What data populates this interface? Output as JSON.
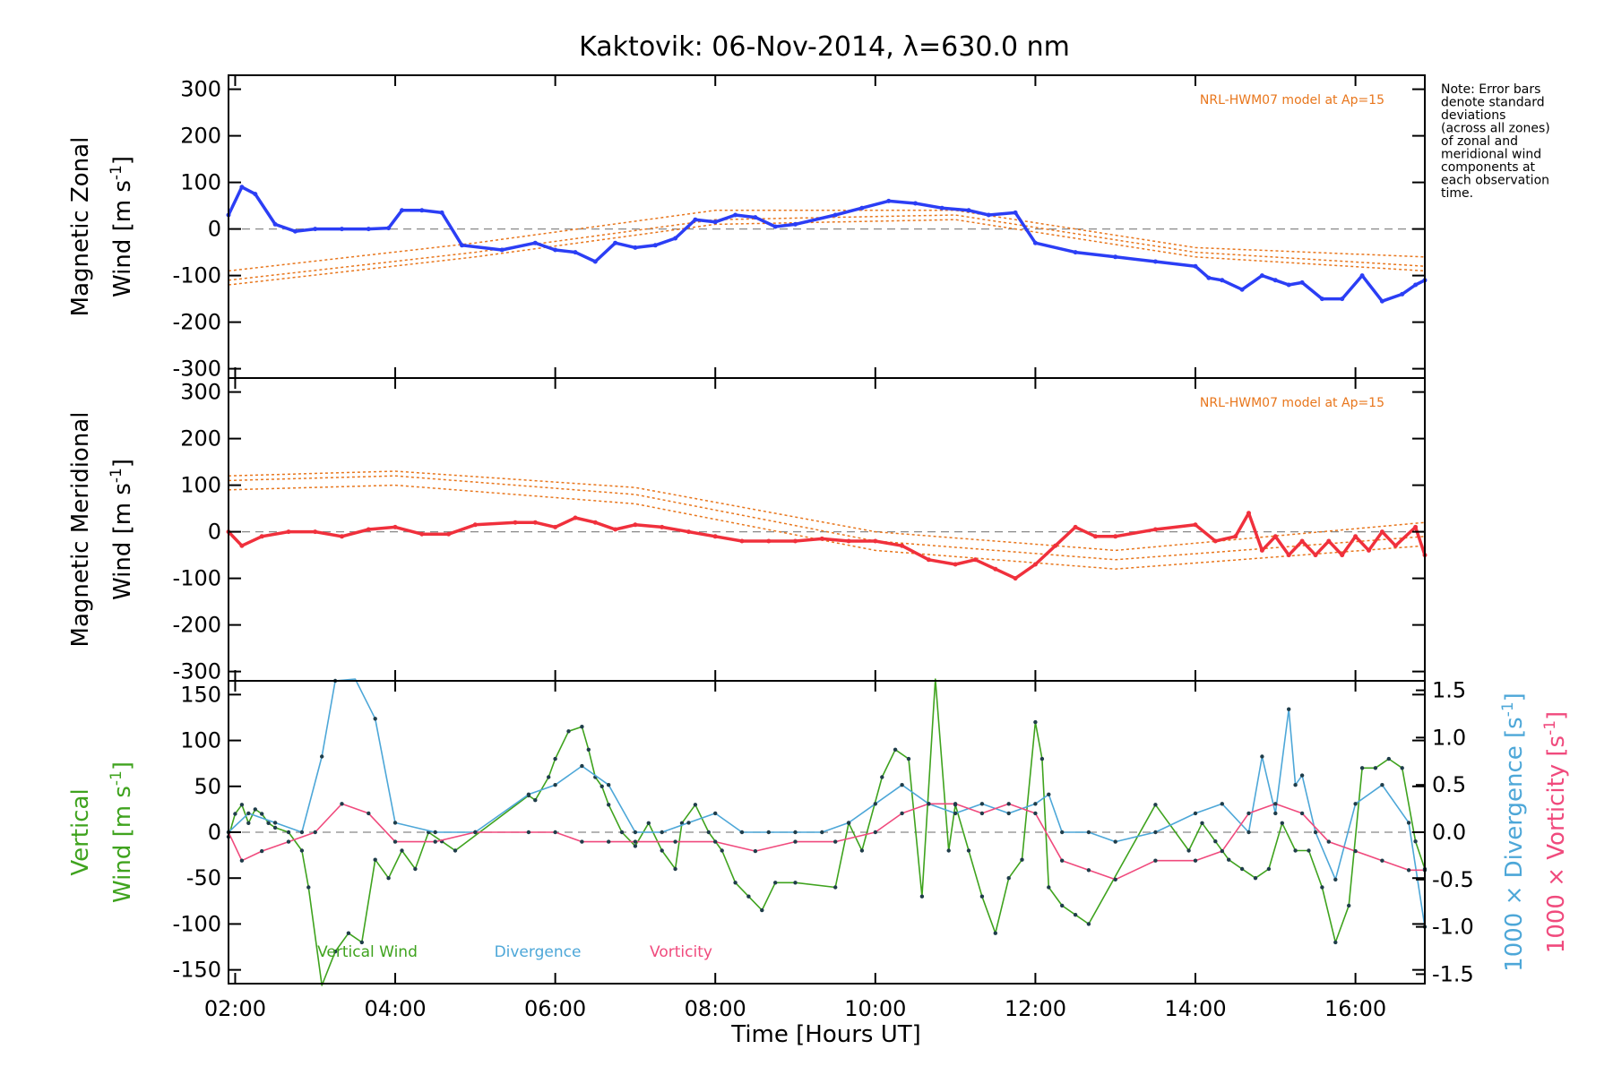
{
  "chart_data": [
    {
      "type": "line",
      "title": "Kaktovik: 06-Nov-2014, λ=630.0 nm",
      "ylabel": "Magnetic Zonal Wind [m s-1]",
      "ylabel_parts": {
        "line1": "Magnetic Zonal",
        "line2": "Wind [m s",
        "sup": "-1",
        "close": "]"
      },
      "xlim": [
        "01:55",
        "16:52"
      ],
      "ylim": [
        -320,
        330
      ],
      "yticks": [
        "300",
        "200",
        "100",
        "0",
        "-100",
        "-200",
        "-300"
      ],
      "zero_line": true,
      "note": [
        "Note: Error bars",
        "denote standard",
        "deviations",
        "(across all zones)",
        "of zonal and",
        "meridional wind",
        "components at",
        "each observation",
        "time."
      ],
      "model_label": "NRL-HWM07 model at Ap=15",
      "series": [
        {
          "color": "#2b3ef5",
          "x": [
            "01:55",
            "02:05",
            "02:15",
            "02:30",
            "02:45",
            "03:00",
            "03:20",
            "03:40",
            "03:55",
            "04:05",
            "04:20",
            "04:35",
            "04:50",
            "05:20",
            "05:45",
            "06:00",
            "06:15",
            "06:30",
            "06:45",
            "07:00",
            "07:15",
            "07:30",
            "07:45",
            "08:00",
            "08:15",
            "08:30",
            "08:45",
            "09:00",
            "09:30",
            "09:50",
            "10:10",
            "10:30",
            "10:50",
            "11:10",
            "11:25",
            "11:45",
            "12:00",
            "12:30",
            "13:00",
            "13:30",
            "14:00",
            "14:10",
            "14:20",
            "14:35",
            "14:50",
            "15:00",
            "15:10",
            "15:20",
            "15:35",
            "15:50",
            "16:05",
            "16:20",
            "16:35",
            "16:45",
            "16:52"
          ],
          "values": [
            30,
            90,
            75,
            10,
            -5,
            0,
            0,
            0,
            2,
            40,
            40,
            35,
            -35,
            -45,
            -30,
            -45,
            -50,
            -70,
            -30,
            -40,
            -35,
            -20,
            20,
            15,
            30,
            25,
            5,
            10,
            30,
            45,
            60,
            55,
            45,
            40,
            30,
            35,
            -30,
            -50,
            -60,
            -70,
            -80,
            -105,
            -110,
            -130,
            -100,
            -110,
            -120,
            -115,
            -150,
            -150,
            -100,
            -155,
            -140,
            -120,
            -110
          ]
        }
      ],
      "model_curves": [
        {
          "color": "#e8761c",
          "x": [
            "01:55",
            "05:00",
            "08:00",
            "11:00",
            "14:00",
            "16:52"
          ],
          "values": [
            -110,
            -50,
            20,
            30,
            -50,
            -80
          ]
        },
        {
          "color": "#e8761c",
          "x": [
            "01:55",
            "05:00",
            "08:00",
            "11:00",
            "14:00",
            "16:52"
          ],
          "values": [
            -90,
            -30,
            40,
            40,
            -40,
            -60
          ]
        },
        {
          "color": "#e8761c",
          "x": [
            "01:55",
            "05:00",
            "08:00",
            "11:00",
            "14:00",
            "16:52"
          ],
          "values": [
            -120,
            -60,
            10,
            20,
            -60,
            -90
          ]
        }
      ]
    },
    {
      "type": "line",
      "ylabel": "Magnetic Meridional Wind [m s-1]",
      "ylabel_parts": {
        "line1": "Magnetic Meridional",
        "line2": "Wind [m s",
        "sup": "-1",
        "close": "]"
      },
      "xlim": [
        "01:55",
        "16:52"
      ],
      "ylim": [
        -320,
        330
      ],
      "yticks": [
        "300",
        "200",
        "100",
        "0",
        "-100",
        "-200",
        "-300"
      ],
      "zero_line": true,
      "model_label": "NRL-HWM07 model at Ap=15",
      "series": [
        {
          "color": "#f0303c",
          "x": [
            "01:55",
            "02:05",
            "02:20",
            "02:40",
            "03:00",
            "03:20",
            "03:40",
            "04:00",
            "04:20",
            "04:40",
            "05:00",
            "05:30",
            "05:45",
            "06:00",
            "06:15",
            "06:30",
            "06:45",
            "07:00",
            "07:20",
            "07:40",
            "08:00",
            "08:20",
            "08:40",
            "09:00",
            "09:20",
            "09:40",
            "10:00",
            "10:20",
            "10:40",
            "11:00",
            "11:15",
            "11:30",
            "11:45",
            "12:00",
            "12:15",
            "12:30",
            "12:45",
            "13:00",
            "13:30",
            "14:00",
            "14:15",
            "14:30",
            "14:40",
            "14:50",
            "15:00",
            "15:10",
            "15:20",
            "15:30",
            "15:40",
            "15:50",
            "16:00",
            "16:10",
            "16:20",
            "16:30",
            "16:45",
            "16:52"
          ],
          "values": [
            0,
            -30,
            -10,
            0,
            0,
            -10,
            5,
            10,
            -5,
            -5,
            15,
            20,
            20,
            10,
            30,
            20,
            5,
            15,
            10,
            0,
            -10,
            -20,
            -20,
            -20,
            -15,
            -20,
            -20,
            -30,
            -60,
            -70,
            -60,
            -80,
            -100,
            -70,
            -30,
            10,
            -10,
            -10,
            5,
            15,
            -20,
            -10,
            40,
            -40,
            -10,
            -50,
            -20,
            -50,
            -20,
            -50,
            -10,
            -40,
            0,
            -30,
            10,
            -50
          ]
        }
      ],
      "model_curves": [
        {
          "color": "#e8761c",
          "x": [
            "01:55",
            "04:00",
            "07:00",
            "10:00",
            "13:00",
            "16:52"
          ],
          "values": [
            110,
            120,
            80,
            -20,
            -60,
            -10
          ]
        },
        {
          "color": "#e8761c",
          "x": [
            "01:55",
            "04:00",
            "07:00",
            "10:00",
            "13:00",
            "16:52"
          ],
          "values": [
            90,
            100,
            60,
            -40,
            -80,
            -30
          ]
        },
        {
          "color": "#e8761c",
          "x": [
            "01:55",
            "04:00",
            "07:00",
            "10:00",
            "13:00",
            "16:52"
          ],
          "values": [
            120,
            130,
            95,
            0,
            -40,
            20
          ]
        }
      ]
    },
    {
      "type": "line",
      "ylabel": "Vertical Wind [m s-1]",
      "ylabel_parts": {
        "line1": "Vertical",
        "line2": "Wind [m s",
        "sup": "-1",
        "close": "]"
      },
      "y2label_div_parts": {
        "text": "1000 × Divergence [s",
        "sup": "-1",
        "close": "]"
      },
      "y2label_vor_parts": {
        "text": "1000 × Vorticity [s",
        "sup": "-1",
        "close": "]"
      },
      "xlabel": "Time [Hours UT]",
      "xlim": [
        "01:55",
        "16:52"
      ],
      "xticks": [
        "02:00",
        "04:00",
        "06:00",
        "08:00",
        "10:00",
        "12:00",
        "14:00",
        "16:00"
      ],
      "ylim": [
        -165,
        165
      ],
      "yticks": [
        "150",
        "100",
        "50",
        "0",
        "-50",
        "-100",
        "-150"
      ],
      "y2lim": [
        -1.6,
        1.6
      ],
      "y2ticks": [
        "1.5",
        "1.0",
        "0.5",
        "0.0",
        "-0.5",
        "-1.0",
        "-1.5"
      ],
      "zero_line": true,
      "legend": [
        "Vertical Wind",
        "Divergence",
        "Vorticity"
      ],
      "series": [
        {
          "name": "Vertical Wind",
          "color": "#3fa31e",
          "axis": "left",
          "x": [
            "01:55",
            "02:00",
            "02:05",
            "02:10",
            "02:15",
            "02:20",
            "02:25",
            "02:30",
            "02:40",
            "02:50",
            "02:55",
            "03:05",
            "03:15",
            "03:25",
            "03:35",
            "03:45",
            "03:55",
            "04:05",
            "04:15",
            "04:25",
            "04:35",
            "04:45",
            "05:40",
            "05:45",
            "05:55",
            "06:00",
            "06:10",
            "06:20",
            "06:25",
            "06:30",
            "06:35",
            "06:40",
            "06:50",
            "07:00",
            "07:10",
            "07:20",
            "07:30",
            "07:35",
            "07:45",
            "07:55",
            "08:05",
            "08:15",
            "08:25",
            "08:35",
            "08:45",
            "09:00",
            "09:30",
            "09:40",
            "09:50",
            "10:05",
            "10:15",
            "10:25",
            "10:35",
            "10:45",
            "10:55",
            "11:00",
            "11:10",
            "11:20",
            "11:30",
            "11:40",
            "11:50",
            "12:00",
            "12:05",
            "12:10",
            "12:20",
            "12:30",
            "12:40",
            "13:30",
            "13:55",
            "14:05",
            "14:15",
            "14:25",
            "14:35",
            "14:45",
            "14:55",
            "15:05",
            "15:15",
            "15:25",
            "15:35",
            "15:45",
            "15:55",
            "16:05",
            "16:15",
            "16:25",
            "16:35",
            "16:45",
            "16:52"
          ],
          "values": [
            -5,
            20,
            30,
            10,
            25,
            20,
            10,
            5,
            0,
            -20,
            -60,
            -170,
            -130,
            -110,
            -120,
            -30,
            -50,
            -20,
            -40,
            0,
            -10,
            -20,
            40,
            35,
            60,
            80,
            110,
            115,
            90,
            60,
            50,
            30,
            0,
            -15,
            10,
            -20,
            -40,
            10,
            30,
            0,
            -20,
            -55,
            -70,
            -85,
            -55,
            -55,
            -60,
            10,
            -20,
            60,
            90,
            80,
            -70,
            170,
            -20,
            30,
            -20,
            -70,
            -110,
            -50,
            -30,
            120,
            80,
            -60,
            -80,
            -90,
            -100,
            30,
            -20,
            10,
            -10,
            -30,
            -40,
            -50,
            -40,
            10,
            -20,
            -20,
            -60,
            -120,
            -80,
            70,
            70,
            80,
            70,
            -10,
            -40
          ]
        },
        {
          "name": "Divergence",
          "color": "#4da7d8",
          "axis": "right",
          "x": [
            "01:55",
            "02:10",
            "02:30",
            "02:50",
            "03:05",
            "03:15",
            "03:30",
            "03:45",
            "04:00",
            "04:30",
            "05:00",
            "05:40",
            "06:00",
            "06:20",
            "06:40",
            "07:00",
            "07:20",
            "07:40",
            "08:00",
            "08:20",
            "08:40",
            "09:00",
            "09:20",
            "09:40",
            "10:00",
            "10:20",
            "10:40",
            "11:00",
            "11:20",
            "11:40",
            "12:00",
            "12:10",
            "12:20",
            "12:40",
            "13:00",
            "13:30",
            "14:00",
            "14:20",
            "14:40",
            "14:50",
            "15:00",
            "15:10",
            "15:15",
            "15:20",
            "15:30",
            "15:45",
            "16:00",
            "16:20",
            "16:40",
            "16:52"
          ],
          "values": [
            0.0,
            0.2,
            0.1,
            0.0,
            0.8,
            1.6,
            1.7,
            1.2,
            0.1,
            0.0,
            0.0,
            0.4,
            0.5,
            0.7,
            0.5,
            0.0,
            0.0,
            0.1,
            0.2,
            0.0,
            0.0,
            0.0,
            0.0,
            0.1,
            0.3,
            0.5,
            0.3,
            0.2,
            0.3,
            0.2,
            0.3,
            0.4,
            0.0,
            0.0,
            -0.1,
            0.0,
            0.2,
            0.3,
            0.0,
            0.8,
            0.2,
            1.3,
            0.5,
            0.6,
            0.0,
            -0.5,
            0.3,
            0.5,
            0.1,
            -1.0
          ]
        },
        {
          "name": "Vorticity",
          "color": "#f04a7d",
          "axis": "right",
          "x": [
            "01:55",
            "02:05",
            "02:20",
            "02:40",
            "03:00",
            "03:20",
            "03:40",
            "04:00",
            "04:30",
            "05:00",
            "05:40",
            "06:00",
            "06:20",
            "06:40",
            "07:00",
            "07:30",
            "08:00",
            "08:30",
            "09:00",
            "09:30",
            "10:00",
            "10:20",
            "10:40",
            "11:00",
            "11:20",
            "11:40",
            "12:00",
            "12:20",
            "12:40",
            "13:00",
            "13:30",
            "14:00",
            "14:20",
            "14:40",
            "15:00",
            "15:20",
            "15:40",
            "16:00",
            "16:20",
            "16:40",
            "16:52"
          ],
          "values": [
            0.0,
            -0.3,
            -0.2,
            -0.1,
            0.0,
            0.3,
            0.2,
            -0.1,
            -0.1,
            0.0,
            0.0,
            0.0,
            -0.1,
            -0.1,
            -0.1,
            -0.1,
            -0.1,
            -0.2,
            -0.1,
            -0.1,
            0.0,
            0.2,
            0.3,
            0.3,
            0.2,
            0.3,
            0.2,
            -0.3,
            -0.4,
            -0.5,
            -0.3,
            -0.3,
            -0.2,
            0.2,
            0.3,
            0.2,
            -0.1,
            -0.2,
            -0.3,
            -0.4,
            -0.4
          ]
        }
      ]
    }
  ]
}
